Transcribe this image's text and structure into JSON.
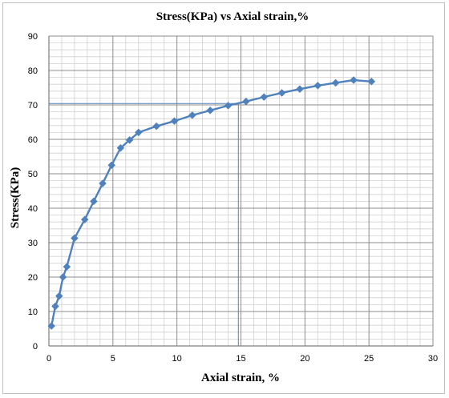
{
  "chart_data": {
    "type": "line",
    "title": "Stress(KPa) vs Axial strain,%",
    "xlabel": "Axial strain, %",
    "ylabel": "Stress(KPa)",
    "xlim": [
      0,
      30
    ],
    "ylim": [
      0,
      90
    ],
    "xticks": [
      "0",
      "5",
      "10",
      "15",
      "20",
      "25",
      "30"
    ],
    "yticks": [
      "0",
      "10",
      "20",
      "30",
      "40",
      "50",
      "60",
      "70",
      "80",
      "90"
    ],
    "grid": true,
    "legend": "none",
    "series": [
      {
        "color": "#4f81bd",
        "marker": "diamond",
        "x": [
          0.2,
          0.5,
          0.8,
          1.1,
          1.4,
          2.0,
          2.8,
          3.5,
          4.2,
          4.9,
          5.6,
          6.3,
          7.0,
          8.4,
          9.8,
          11.2,
          12.6,
          14.0,
          15.4,
          16.8,
          18.2,
          19.6,
          21.0,
          22.4,
          23.8,
          25.2
        ],
        "y": [
          5.8,
          11.5,
          14.5,
          20.0,
          23.0,
          31.3,
          36.7,
          42.0,
          47.2,
          52.5,
          57.5,
          59.8,
          62.0,
          63.8,
          65.3,
          67.0,
          68.4,
          69.8,
          71.0,
          72.3,
          73.5,
          74.6,
          75.6,
          76.4,
          77.2,
          76.8
        ]
      }
    ],
    "reference_line": {
      "x": 14.8,
      "y": 70.4,
      "color": "#4f81bd"
    }
  }
}
